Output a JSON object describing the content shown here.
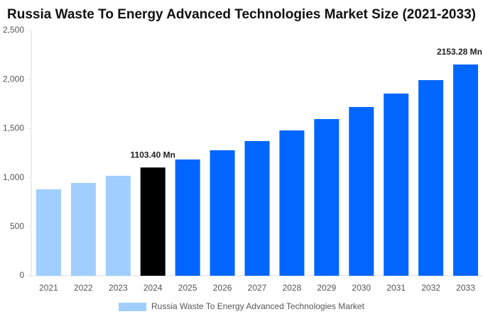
{
  "chart_data": {
    "type": "bar",
    "title": "Russia Waste To Energy Advanced Technologies Market Size (2021-2033)",
    "categories": [
      "2021",
      "2022",
      "2023",
      "2024",
      "2025",
      "2026",
      "2027",
      "2028",
      "2029",
      "2030",
      "2031",
      "2032",
      "2033"
    ],
    "series": [
      {
        "name": "Russia Waste To Energy Advanced Technologies Market",
        "color": "#a0cfff",
        "colors": [
          "#a0cfff",
          "#a0cfff",
          "#a0cfff",
          "#000000",
          "#0066ff",
          "#0066ff",
          "#0066ff",
          "#0066ff",
          "#0066ff",
          "#0066ff",
          "#0066ff",
          "#0066ff",
          "#0066ff"
        ],
        "values": [
          881,
          946,
          1019,
          1103.4,
          1185,
          1279,
          1373,
          1481,
          1597,
          1720,
          1857,
          1994,
          2153.28
        ],
        "value_labels": [
          null,
          null,
          null,
          "1103.40 Mn",
          null,
          null,
          null,
          null,
          null,
          null,
          null,
          null,
          "2153.28 Mn"
        ]
      }
    ],
    "ylim": [
      0,
      2500
    ],
    "yticks": [
      0,
      500,
      {
        "value": 1000,
        "label": "1,000"
      },
      {
        "value": 1500,
        "label": "1,500"
      },
      {
        "value": 2000,
        "label": "2,000"
      },
      {
        "value": 2500,
        "label": "2,500"
      }
    ],
    "grid": false,
    "legend": "bottom"
  }
}
